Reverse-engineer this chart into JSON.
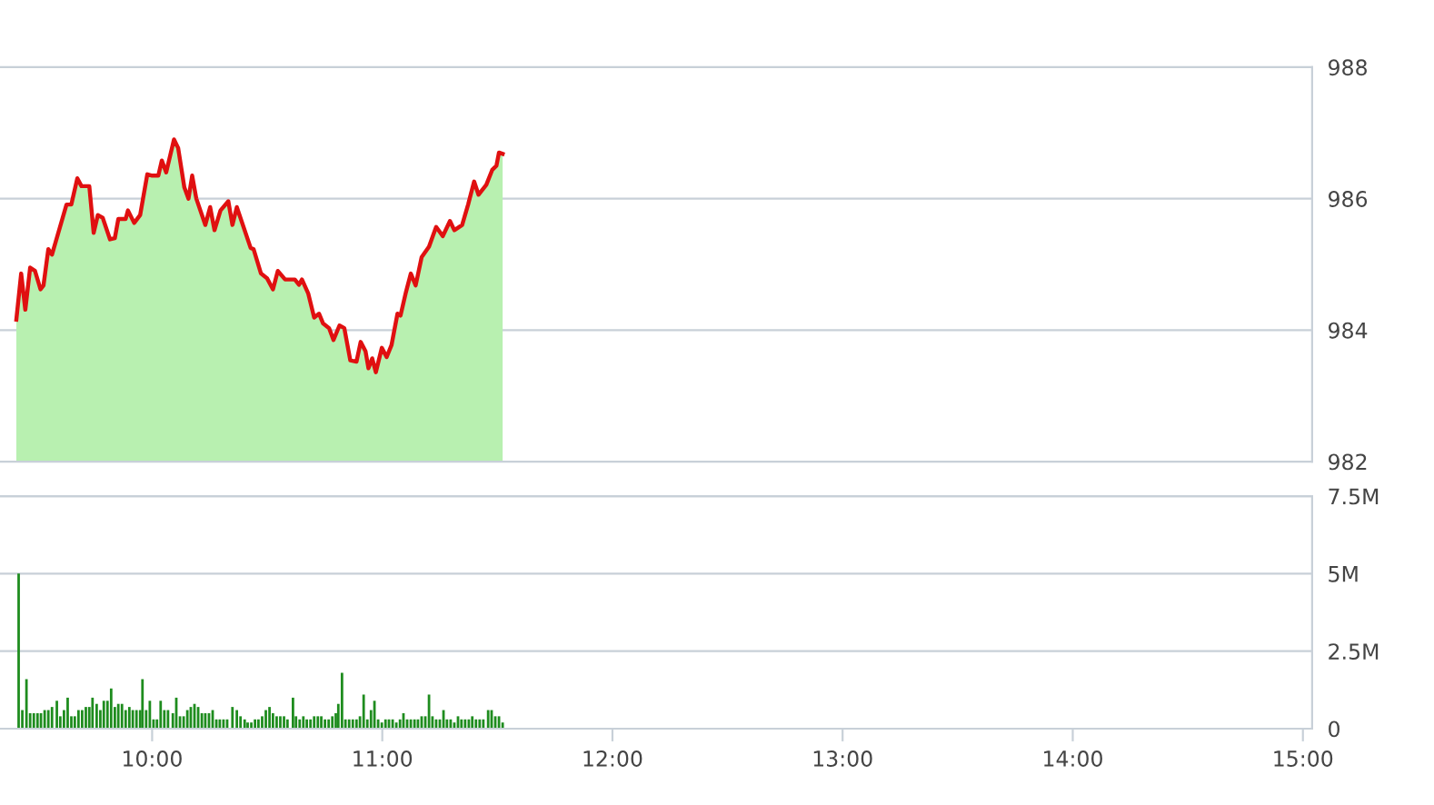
{
  "chart_data": [
    {
      "type": "area",
      "xlim": [
        9.339,
        15.04
      ],
      "ylim": [
        982,
        988
      ],
      "yticks": [
        982,
        984,
        986,
        988
      ],
      "grid": "y",
      "tick_labels": "y",
      "legend": false,
      "series": [
        {
          "color": "#b8f0b0",
          "x": [
            9.41,
            9.431,
            9.449,
            9.47,
            9.491,
            9.515,
            9.528,
            9.549,
            9.565,
            9.628,
            9.649,
            9.675,
            9.693,
            9.727,
            9.746,
            9.764,
            9.785,
            9.817,
            9.838,
            9.853,
            9.885,
            9.895,
            9.922,
            9.948,
            9.979,
            10.0,
            10.027,
            10.042,
            10.061,
            10.095,
            10.113,
            10.14,
            10.158,
            10.174,
            10.192,
            10.231,
            10.252,
            10.271,
            10.297,
            10.331,
            10.349,
            10.368,
            10.428,
            10.441,
            10.473,
            10.499,
            10.525,
            10.546,
            10.578,
            10.62,
            10.638,
            10.651,
            10.678,
            10.704,
            10.725,
            10.743,
            10.769,
            10.788,
            10.814,
            10.835,
            10.861,
            10.888,
            10.906,
            10.927,
            10.94,
            10.956,
            10.972,
            10.998,
            11.019,
            11.04,
            11.066,
            11.079,
            11.103,
            11.124,
            11.145,
            11.171,
            11.203,
            11.234,
            11.263,
            11.294,
            11.313,
            11.347,
            11.373,
            11.399,
            11.418,
            11.452,
            11.478,
            11.496,
            11.507,
            11.523
          ],
          "values": [
            984.16,
            984.86,
            984.31,
            984.95,
            984.9,
            984.62,
            984.68,
            985.23,
            985.15,
            985.91,
            985.91,
            986.31,
            986.19,
            986.19,
            985.48,
            985.75,
            985.71,
            985.38,
            985.4,
            985.69,
            985.69,
            985.82,
            985.63,
            985.75,
            986.37,
            986.35,
            986.35,
            986.58,
            986.4,
            986.9,
            986.77,
            986.17,
            986.0,
            986.35,
            986.0,
            985.6,
            985.87,
            985.52,
            985.82,
            985.96,
            985.6,
            985.87,
            985.25,
            985.23,
            984.86,
            984.79,
            984.62,
            984.9,
            984.77,
            984.77,
            984.69,
            984.77,
            984.56,
            984.19,
            984.25,
            984.1,
            984.03,
            983.85,
            984.07,
            984.03,
            983.54,
            983.52,
            983.82,
            983.68,
            983.42,
            983.57,
            983.36,
            983.73,
            983.59,
            983.77,
            984.25,
            984.22,
            984.58,
            984.86,
            984.68,
            985.11,
            985.27,
            985.57,
            985.43,
            985.66,
            985.52,
            985.6,
            985.91,
            986.26,
            986.06,
            986.21,
            986.44,
            986.5,
            986.7,
            986.68
          ]
        },
        {
          "type": "line",
          "color": "#e01010",
          "x": [
            9.41,
            9.431,
            9.449,
            9.47,
            9.491,
            9.515,
            9.528,
            9.549,
            9.565,
            9.628,
            9.649,
            9.675,
            9.693,
            9.727,
            9.746,
            9.764,
            9.785,
            9.817,
            9.838,
            9.853,
            9.885,
            9.895,
            9.922,
            9.948,
            9.979,
            10.0,
            10.027,
            10.042,
            10.061,
            10.095,
            10.113,
            10.14,
            10.158,
            10.174,
            10.192,
            10.231,
            10.252,
            10.271,
            10.297,
            10.331,
            10.349,
            10.368,
            10.428,
            10.441,
            10.473,
            10.499,
            10.525,
            10.546,
            10.578,
            10.62,
            10.638,
            10.651,
            10.678,
            10.704,
            10.725,
            10.743,
            10.769,
            10.788,
            10.814,
            10.835,
            10.861,
            10.888,
            10.906,
            10.927,
            10.94,
            10.956,
            10.972,
            10.998,
            11.019,
            11.04,
            11.066,
            11.079,
            11.103,
            11.124,
            11.145,
            11.171,
            11.203,
            11.234,
            11.263,
            11.294,
            11.313,
            11.347,
            11.373,
            11.399,
            11.418,
            11.452,
            11.478,
            11.496,
            11.507,
            11.523
          ],
          "values": [
            984.16,
            984.86,
            984.31,
            984.95,
            984.9,
            984.62,
            984.68,
            985.23,
            985.15,
            985.91,
            985.91,
            986.31,
            986.19,
            986.19,
            985.48,
            985.75,
            985.71,
            985.38,
            985.4,
            985.69,
            985.69,
            985.82,
            985.63,
            985.75,
            986.37,
            986.35,
            986.35,
            986.58,
            986.4,
            986.9,
            986.77,
            986.17,
            986.0,
            986.35,
            986.0,
            985.6,
            985.87,
            985.52,
            985.82,
            985.96,
            985.6,
            985.87,
            985.25,
            985.23,
            984.86,
            984.79,
            984.62,
            984.9,
            984.77,
            984.77,
            984.69,
            984.77,
            984.56,
            984.19,
            984.25,
            984.1,
            984.03,
            983.85,
            984.07,
            984.03,
            983.54,
            983.52,
            983.82,
            983.68,
            983.42,
            983.57,
            983.36,
            983.73,
            983.59,
            983.77,
            984.25,
            984.22,
            984.58,
            984.86,
            984.68,
            985.11,
            985.27,
            985.57,
            985.43,
            985.66,
            985.52,
            985.6,
            985.91,
            986.26,
            986.06,
            986.21,
            986.44,
            986.5,
            986.7,
            986.68
          ]
        }
      ]
    },
    {
      "type": "bar",
      "xlim": [
        9.339,
        15.04
      ],
      "xticks": [
        {
          "value": 10,
          "label": "10:00"
        },
        {
          "value": 11,
          "label": "11:00"
        },
        {
          "value": 12,
          "label": "12:00"
        },
        {
          "value": 13,
          "label": "13:00"
        },
        {
          "value": 14,
          "label": "14:00"
        },
        {
          "value": 15,
          "label": "15:00"
        }
      ],
      "ylim": [
        0,
        7.5
      ],
      "yticks": [
        0,
        {
          "value": 2.5,
          "label": "2.5M"
        },
        {
          "value": 5,
          "label": "5M"
        },
        {
          "value": 7.5,
          "label": "7.5M"
        }
      ],
      "grid": "y",
      "legend": false,
      "series": [
        {
          "color": "#1e8c1e",
          "x": [
            9.42,
            9.436,
            9.454,
            9.47,
            9.486,
            9.502,
            9.517,
            9.533,
            9.549,
            9.565,
            9.586,
            9.601,
            9.617,
            9.633,
            9.649,
            9.664,
            9.68,
            9.696,
            9.712,
            9.727,
            9.741,
            9.759,
            9.775,
            9.79,
            9.806,
            9.822,
            9.838,
            9.853,
            9.869,
            9.885,
            9.901,
            9.916,
            9.932,
            9.948,
            9.958,
            9.974,
            9.99,
            10.006,
            10.021,
            10.037,
            10.053,
            10.069,
            10.09,
            10.105,
            10.121,
            10.137,
            10.153,
            10.168,
            10.184,
            10.2,
            10.216,
            10.231,
            10.247,
            10.263,
            10.279,
            10.294,
            10.31,
            10.326,
            10.349,
            10.368,
            10.384,
            10.402,
            10.415,
            10.431,
            10.447,
            10.462,
            10.478,
            10.494,
            10.51,
            10.525,
            10.541,
            10.557,
            10.573,
            10.588,
            10.612,
            10.625,
            10.641,
            10.657,
            10.672,
            10.688,
            10.704,
            10.72,
            10.735,
            10.751,
            10.767,
            10.783,
            10.798,
            10.809,
            10.825,
            10.84,
            10.856,
            10.872,
            10.888,
            10.903,
            10.919,
            10.935,
            10.951,
            10.966,
            10.982,
            10.998,
            11.014,
            11.029,
            11.045,
            11.061,
            11.077,
            11.092,
            11.108,
            11.124,
            11.14,
            11.155,
            11.171,
            11.187,
            11.203,
            11.218,
            11.234,
            11.25,
            11.266,
            11.281,
            11.297,
            11.313,
            11.329,
            11.344,
            11.36,
            11.376,
            11.391,
            11.407,
            11.423,
            11.439,
            11.46,
            11.475,
            11.491,
            11.507,
            11.523
          ],
          "values": [
            5.0,
            0.6,
            1.6,
            0.5,
            0.5,
            0.5,
            0.5,
            0.6,
            0.6,
            0.7,
            0.9,
            0.4,
            0.6,
            1.0,
            0.4,
            0.4,
            0.6,
            0.6,
            0.7,
            0.7,
            1.0,
            0.8,
            0.6,
            0.9,
            0.9,
            1.3,
            0.7,
            0.8,
            0.8,
            0.6,
            0.7,
            0.6,
            0.6,
            0.6,
            1.6,
            0.6,
            0.9,
            0.3,
            0.3,
            0.9,
            0.6,
            0.6,
            0.5,
            1.0,
            0.4,
            0.4,
            0.6,
            0.7,
            0.8,
            0.7,
            0.5,
            0.5,
            0.5,
            0.6,
            0.3,
            0.3,
            0.3,
            0.3,
            0.7,
            0.6,
            0.4,
            0.3,
            0.2,
            0.2,
            0.3,
            0.3,
            0.4,
            0.6,
            0.7,
            0.5,
            0.4,
            0.4,
            0.4,
            0.3,
            1.0,
            0.4,
            0.3,
            0.4,
            0.3,
            0.3,
            0.4,
            0.4,
            0.4,
            0.3,
            0.3,
            0.4,
            0.5,
            0.8,
            1.8,
            0.3,
            0.3,
            0.3,
            0.3,
            0.4,
            1.1,
            0.3,
            0.6,
            0.9,
            0.3,
            0.2,
            0.3,
            0.3,
            0.3,
            0.2,
            0.3,
            0.5,
            0.3,
            0.3,
            0.3,
            0.3,
            0.4,
            0.4,
            1.1,
            0.4,
            0.3,
            0.3,
            0.6,
            0.3,
            0.3,
            0.2,
            0.4,
            0.3,
            0.3,
            0.3,
            0.4,
            0.3,
            0.3,
            0.3,
            0.6,
            0.6,
            0.4,
            0.4,
            0.2
          ]
        }
      ]
    }
  ]
}
